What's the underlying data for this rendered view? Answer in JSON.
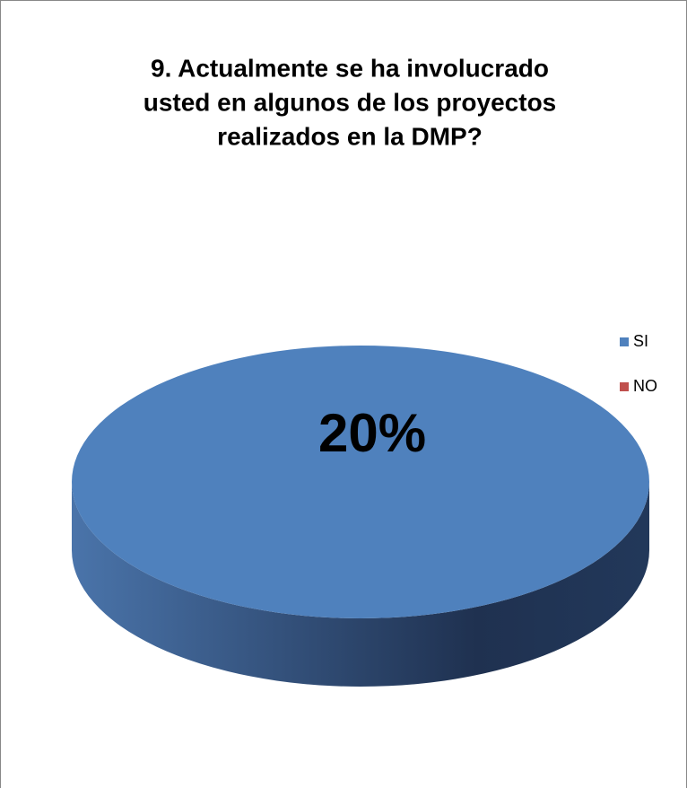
{
  "chart_data": {
    "type": "pie",
    "title": "9. Actualmente se ha involucrado usted en algunos de los proyectos realizados en la DMP?",
    "title_lines": [
      "9. Actualmente se ha involucrado",
      "usted en algunos de los proyectos",
      "realizados en la DMP?"
    ],
    "categories": [
      "SI",
      "NO"
    ],
    "values": [
      20,
      0
    ],
    "value_labels": [
      "20%",
      null
    ],
    "colors": [
      "#4f81bd",
      "#c0504d"
    ],
    "legend": "right"
  }
}
